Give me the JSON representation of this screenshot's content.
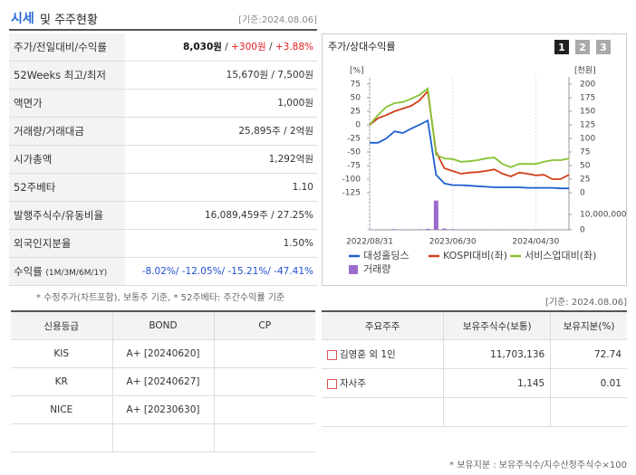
{
  "header": {
    "title": "시세",
    "subtitle": "및 주주현황",
    "date": "[기준:2024.08.06]"
  },
  "summary": {
    "rows": [
      {
        "label": "주가/전일대비/수익률",
        "value_parts": [
          "8,030원",
          " / ",
          "+300원",
          " / ",
          "+3.88%"
        ]
      },
      {
        "label": "52Weeks 최고/최저",
        "value": "15,670원 / 7,500원"
      },
      {
        "label": "액면가",
        "value": "1,000원"
      },
      {
        "label": "거래량/거래대금",
        "value": "25,895주 / 2억원"
      },
      {
        "label": "시가총액",
        "value": "1,292억원"
      },
      {
        "label": "52주베타",
        "value": "1.10"
      },
      {
        "label": "발행주식수/유동비율",
        "value": "16,089,459주 / 27.25%"
      },
      {
        "label": "외국인지분율",
        "value": "1.50%"
      },
      {
        "label": "수익률",
        "sublabel": "(1M/3M/6M/1Y)",
        "value": "-8.02%/ -12.05%/ -15.21%/ -47.41%"
      }
    ],
    "note": "* 수정주가(차트포함), 보통주 기준, * 52주베타: 주간수익률 기준"
  },
  "chart_panel": {
    "tabs": [
      "1",
      "2",
      "3"
    ]
  },
  "chart_data": {
    "type": "line",
    "title": "주가/상대수익률",
    "ylabel": "[%]",
    "y2label": "[천원]",
    "categories": [
      "2022/08/31",
      null,
      null,
      null,
      null,
      null,
      null,
      null,
      null,
      null,
      "2023/06/30",
      null,
      null,
      null,
      null,
      null,
      null,
      null,
      null,
      null,
      "2024/04/30",
      null,
      null,
      null,
      null
    ],
    "series": [
      {
        "name": "대성홀딩스",
        "color": "#1f5fd1",
        "axis": "y2",
        "values": [
          92,
          92,
          100,
          113,
          110,
          118,
          125,
          133,
          33,
          17,
          14,
          14,
          13,
          12,
          11,
          10,
          10,
          10,
          10,
          9,
          9,
          9,
          9,
          8,
          8
        ]
      },
      {
        "name": "KOSPI대비(좌)",
        "color": "#d2401a",
        "values": [
          0,
          12,
          18,
          25,
          30,
          35,
          45,
          62,
          -50,
          -80,
          -85,
          -90,
          -88,
          -87,
          -85,
          -82,
          -90,
          -95,
          -88,
          -90,
          -93,
          -92,
          -100,
          -100,
          -92
        ]
      },
      {
        "name": "서비스업대비(좌)",
        "color": "#86c232",
        "values": [
          0,
          18,
          33,
          40,
          42,
          48,
          55,
          67,
          -55,
          -62,
          -63,
          -68,
          -67,
          -65,
          -62,
          -60,
          -72,
          -78,
          -72,
          -72,
          -72,
          -68,
          -65,
          -65,
          -62
        ]
      }
    ],
    "volume": {
      "name": "거래량",
      "color": "#9b6bcc",
      "values": [
        300000,
        250000,
        200000,
        400000,
        300000,
        250000,
        350000,
        600000,
        19000000,
        800000,
        400000,
        300000,
        250000,
        200000,
        200000,
        150000,
        200000,
        150000,
        150000,
        120000,
        150000,
        100000,
        120000,
        100000,
        100000
      ],
      "ylim": [
        0,
        20000000
      ],
      "yticks": [
        {
          "value": 10000000,
          "label": "10,000,000"
        },
        0
      ]
    },
    "ylim": [
      -125,
      75
    ],
    "yticks": [
      75,
      50,
      25,
      0,
      -25,
      -50,
      -75,
      -100,
      -125
    ],
    "y2lim": [
      0,
      200
    ],
    "y2ticks": [
      200,
      175,
      150,
      125,
      100,
      75,
      50,
      25,
      0
    ]
  },
  "credit": {
    "headers": [
      "신용등급",
      "BOND",
      "CP"
    ],
    "rows": [
      {
        "agency": "KIS",
        "grade": "A+",
        "date": "[20240620]"
      },
      {
        "agency": "KR",
        "grade": "A+",
        "date": "[20240627]"
      },
      {
        "agency": "NICE",
        "grade": "A+",
        "date": "[20230630]"
      }
    ]
  },
  "shareholders": {
    "date": "[기준: 2024.08.06]",
    "headers": [
      "주요주주",
      "보유주식수(보통)",
      "보유지분(%)"
    ],
    "rows": [
      [
        "김영훈 외 1인",
        "11,703,136",
        "72.74"
      ],
      [
        "자사주",
        "1,145",
        "0.01"
      ]
    ],
    "note": "* 보유지분 : 보유주식수/지수산정주식수×100"
  }
}
